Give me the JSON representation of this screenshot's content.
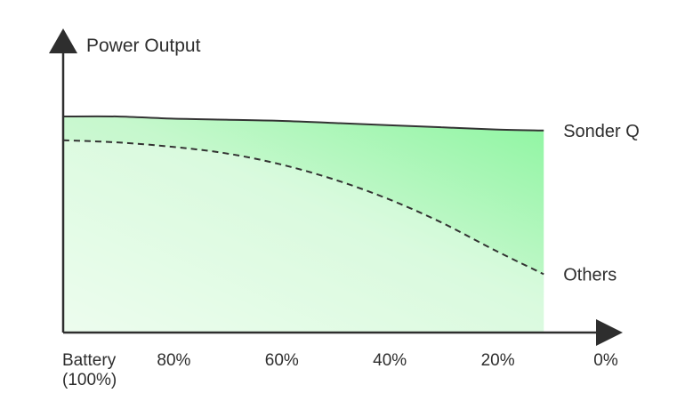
{
  "chart_data": {
    "type": "area",
    "ylabel": "Power Output",
    "xlabel": "",
    "x_tick_labels": [
      {
        "value": 100,
        "lines": [
          "Battery",
          "(100%)"
        ]
      },
      {
        "value": 80,
        "lines": [
          "80%"
        ]
      },
      {
        "value": 60,
        "lines": [
          "60%"
        ]
      },
      {
        "value": 40,
        "lines": [
          "40%"
        ]
      },
      {
        "value": 20,
        "lines": [
          "20%"
        ]
      },
      {
        "value": 0,
        "lines": [
          "0%"
        ]
      }
    ],
    "x_unit": "battery %",
    "xlim": [
      100,
      0
    ],
    "ylim": [
      0,
      1.25
    ],
    "grid": false,
    "legend": "direct labels at line ends (right)",
    "series": [
      {
        "name": "Sonder Q",
        "line_style": "solid",
        "color": "#333333",
        "x": [
          100,
          90,
          80,
          70,
          60,
          50,
          40,
          30,
          20,
          11
        ],
        "values": [
          1.0,
          1.0,
          0.99,
          0.985,
          0.98,
          0.97,
          0.96,
          0.95,
          0.94,
          0.935
        ]
      },
      {
        "name": "Others",
        "line_style": "dashed",
        "color": "#333333",
        "x": [
          100,
          90,
          80,
          70,
          60,
          50,
          40,
          30,
          20,
          11
        ],
        "values": [
          0.89,
          0.88,
          0.86,
          0.83,
          0.78,
          0.71,
          0.62,
          0.51,
          0.38,
          0.27
        ]
      }
    ],
    "colors": {
      "fill_light": "#e3fbe5",
      "fill_bright": "#8ef5a1",
      "axis": "#2e2e2e",
      "text": "#2e2e2e"
    }
  }
}
